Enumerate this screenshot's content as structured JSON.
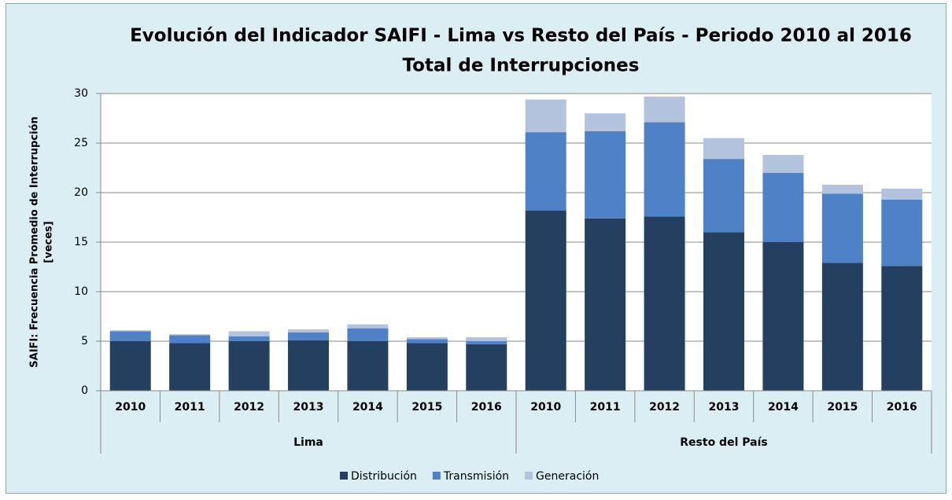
{
  "chart_data": {
    "type": "stacked_bar",
    "title": [
      "Evolución del Indicador SAIFI - Lima vs Resto del País  - Periodo 2010 al 2016",
      "Total de Interrupciones"
    ],
    "y_label": [
      "SAIFI: Frecuencia Promedio de Interrupción",
      "[veces]"
    ],
    "groups": [
      {
        "name": "Lima",
        "categories": [
          "2010",
          "2011",
          "2012",
          "2013",
          "2014",
          "2015",
          "2016"
        ]
      },
      {
        "name": "Resto del País",
        "categories": [
          "2010",
          "2011",
          "2012",
          "2013",
          "2014",
          "2015",
          "2016"
        ]
      }
    ],
    "series": [
      {
        "name": "Distribución",
        "color": "#243f60",
        "values": [
          5.0,
          4.8,
          5.0,
          5.1,
          5.0,
          4.8,
          4.7,
          18.2,
          17.4,
          17.6,
          16.0,
          15.0,
          12.9,
          12.6
        ]
      },
      {
        "name": "Transmisión",
        "color": "#4f81c7",
        "values": [
          1.0,
          0.8,
          0.5,
          0.8,
          1.3,
          0.4,
          0.3,
          7.9,
          8.8,
          9.5,
          7.4,
          7.0,
          7.0,
          6.7
        ]
      },
      {
        "name": "Generación",
        "color": "#b3c2dd",
        "values": [
          0.1,
          0.1,
          0.5,
          0.3,
          0.4,
          0.2,
          0.4,
          3.3,
          1.8,
          2.6,
          2.1,
          1.8,
          0.9,
          1.1
        ]
      }
    ],
    "ylim": [
      0,
      30
    ],
    "yticks": [
      0,
      5,
      10,
      15,
      20,
      25,
      30
    ],
    "grid": true,
    "legend": "bottom"
  }
}
